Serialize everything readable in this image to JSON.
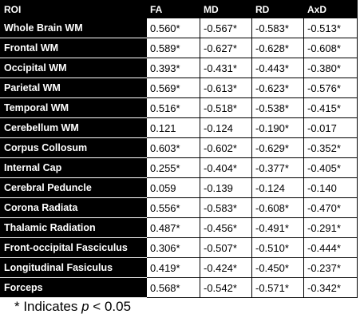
{
  "table": {
    "header": [
      "ROI",
      "FA",
      "MD",
      "RD",
      "AxD"
    ],
    "rows": [
      [
        "Whole Brain WM",
        "0.560*",
        "-0.567*",
        "-0.583*",
        "-0.513*"
      ],
      [
        "Frontal WM",
        "0.589*",
        "-0.627*",
        "-0.628*",
        "-0.608*"
      ],
      [
        "Occipital WM",
        "0.393*",
        "-0.431*",
        "-0.443*",
        "-0.380*"
      ],
      [
        "Parietal WM",
        "0.569*",
        "-0.613*",
        "-0.623*",
        "-0.576*"
      ],
      [
        "Temporal WM",
        "0.516*",
        "-0.518*",
        "-0.538*",
        "-0.415*"
      ],
      [
        "Cerebellum WM",
        "0.121",
        "-0.124",
        "-0.190*",
        "-0.017"
      ],
      [
        "Corpus Collosum",
        "0.603*",
        "-0.602*",
        "-0.629*",
        "-0.352*"
      ],
      [
        "Internal Cap",
        "0.255*",
        "-0.404*",
        "-0.377*",
        "-0.405*"
      ],
      [
        "Cerebral Peduncle",
        "0.059",
        "-0.139",
        "-0.124",
        "-0.140"
      ],
      [
        "Corona Radiata",
        "0.556*",
        "-0.583*",
        "-0.608*",
        "-0.470*"
      ],
      [
        "Thalamic Radiation",
        "0.487*",
        "-0.456*",
        "-0.491*",
        "-0.291*"
      ],
      [
        "Front-occipital Fasciculus",
        "0.306*",
        "-0.507*",
        "-0.510*",
        "-0.444*"
      ],
      [
        "Longitudinal Fasiculus",
        "0.419*",
        "-0.424*",
        "-0.450*",
        "-0.237*"
      ],
      [
        "Forceps",
        "0.568*",
        "-0.542*",
        "-0.571*",
        "-0.342*"
      ]
    ]
  },
  "footnote": {
    "prefix": "* Indicates ",
    "variable": "p",
    "suffix": " < 0.05"
  }
}
